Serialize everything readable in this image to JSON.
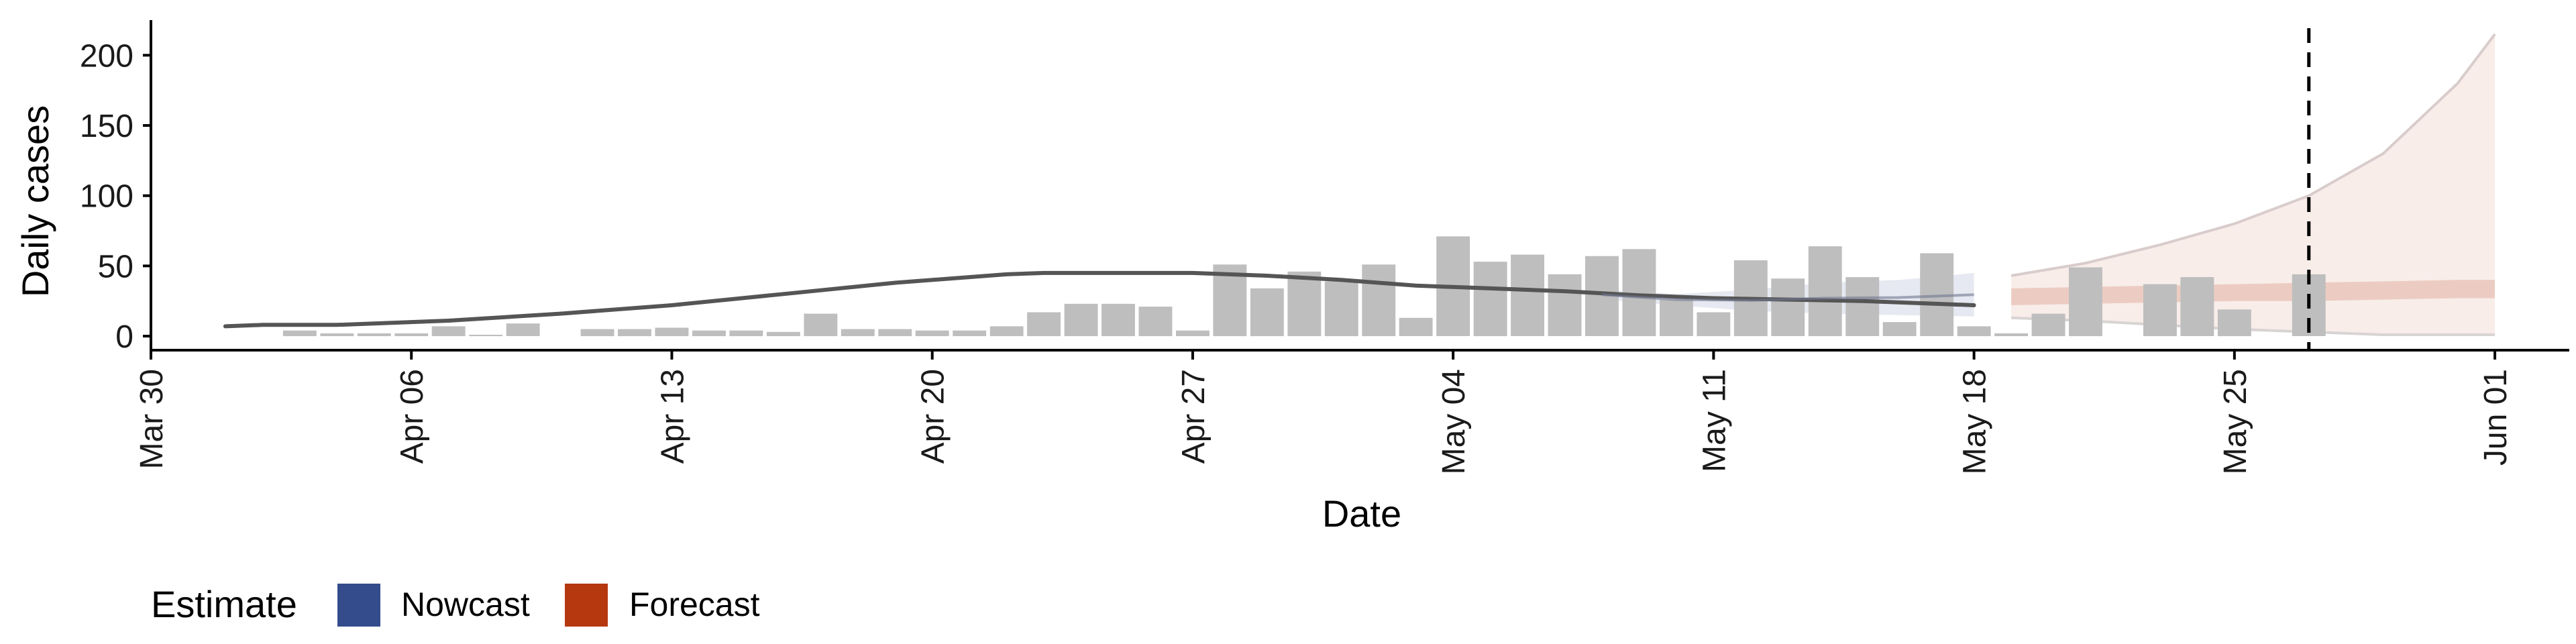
{
  "chart_data": {
    "type": "bar",
    "xlabel": "Date",
    "ylabel": "Daily cases",
    "xlim": [
      "2020-03-30",
      "2020-06-03"
    ],
    "ylim": [
      -10,
      225
    ],
    "x_ticks": [
      "2020-03-30",
      "2020-04-06",
      "2020-04-13",
      "2020-04-20",
      "2020-04-27",
      "2020-05-04",
      "2020-05-11",
      "2020-05-18",
      "2020-05-25",
      "2020-06-01"
    ],
    "x_tick_labels": [
      "Mar 30",
      "Apr 06",
      "Apr 13",
      "Apr 20",
      "Apr 27",
      "May 04",
      "May 11",
      "May 18",
      "May 25",
      "Jun 01"
    ],
    "y_ticks": [
      0,
      50,
      100,
      150,
      200
    ],
    "y_tick_labels": [
      "0",
      "50",
      "100",
      "150",
      "200"
    ],
    "vline_date": "2020-05-27",
    "legend": {
      "title": "Estimate",
      "position": "bottom",
      "items": [
        {
          "label": "Nowcast",
          "color": "#344c8c"
        },
        {
          "label": "Forecast",
          "color": "#b5380f"
        }
      ]
    },
    "colors": {
      "bars": "#bebebe",
      "line": "#555555",
      "nowcast": "#344c8c",
      "forecast": "#b5380f"
    },
    "reported_cases": {
      "dates": [
        "2020-04-03",
        "2020-04-04",
        "2020-04-05",
        "2020-04-06",
        "2020-04-07",
        "2020-04-08",
        "2020-04-09",
        "2020-04-10",
        "2020-04-11",
        "2020-04-12",
        "2020-04-13",
        "2020-04-14",
        "2020-04-15",
        "2020-04-16",
        "2020-04-17",
        "2020-04-18",
        "2020-04-19",
        "2020-04-20",
        "2020-04-21",
        "2020-04-22",
        "2020-04-23",
        "2020-04-24",
        "2020-04-25",
        "2020-04-26",
        "2020-04-27",
        "2020-04-28",
        "2020-04-29",
        "2020-04-30",
        "2020-05-01",
        "2020-05-02",
        "2020-05-03",
        "2020-05-04",
        "2020-05-05",
        "2020-05-06",
        "2020-05-07",
        "2020-05-08",
        "2020-05-09",
        "2020-05-10",
        "2020-05-11",
        "2020-05-12",
        "2020-05-13",
        "2020-05-14",
        "2020-05-15",
        "2020-05-16",
        "2020-05-17",
        "2020-05-18",
        "2020-05-19",
        "2020-05-20",
        "2020-05-21",
        "2020-05-22",
        "2020-05-23",
        "2020-05-24",
        "2020-05-25",
        "2020-05-26",
        "2020-05-27"
      ],
      "values": [
        4,
        2,
        2,
        2,
        7,
        1,
        9,
        0,
        5,
        5,
        6,
        4,
        4,
        3,
        16,
        5,
        5,
        4,
        4,
        7,
        17,
        23,
        23,
        21,
        4,
        51,
        34,
        46,
        39,
        51,
        13,
        71,
        53,
        58,
        44,
        57,
        62,
        26,
        17,
        54,
        41,
        64,
        42,
        10,
        59,
        7,
        2,
        16,
        49,
        0,
        37,
        42,
        19,
        0,
        44
      ]
    },
    "estimate_line": {
      "dates": [
        "2020-04-01",
        "2020-04-02",
        "2020-04-04",
        "2020-04-07",
        "2020-04-10",
        "2020-04-13",
        "2020-04-16",
        "2020-04-19",
        "2020-04-22",
        "2020-04-23",
        "2020-04-25",
        "2020-04-27",
        "2020-04-29",
        "2020-05-01",
        "2020-05-03",
        "2020-05-05",
        "2020-05-07",
        "2020-05-09",
        "2020-05-11",
        "2020-05-13",
        "2020-05-15",
        "2020-05-17",
        "2020-05-18"
      ],
      "values": [
        7,
        8,
        8,
        11,
        16,
        22,
        30,
        38,
        44,
        45,
        45,
        45,
        43,
        40,
        36,
        34,
        32,
        29,
        27,
        26,
        25,
        23,
        22
      ]
    },
    "nowcast": {
      "dates": [
        "2020-05-08",
        "2020-05-10",
        "2020-05-12",
        "2020-05-14",
        "2020-05-16",
        "2020-05-18"
      ],
      "lower": [
        26,
        22,
        18,
        16,
        15,
        14
      ],
      "upper": [
        33,
        30,
        33,
        38,
        40,
        45
      ]
    },
    "forecast": {
      "dates": [
        "2020-05-19",
        "2020-05-21",
        "2020-05-23",
        "2020-05-25",
        "2020-05-27",
        "2020-05-29",
        "2020-05-31",
        "2020-06-01"
      ],
      "lower_outer": [
        13,
        11,
        8,
        5,
        3,
        1,
        1,
        1
      ],
      "lower_inner": [
        22,
        23,
        24,
        25,
        25,
        26,
        27,
        27
      ],
      "upper_inner": [
        34,
        35,
        36,
        37,
        38,
        39,
        40,
        40
      ],
      "upper_outer": [
        43,
        52,
        65,
        80,
        100,
        130,
        180,
        215
      ]
    }
  }
}
